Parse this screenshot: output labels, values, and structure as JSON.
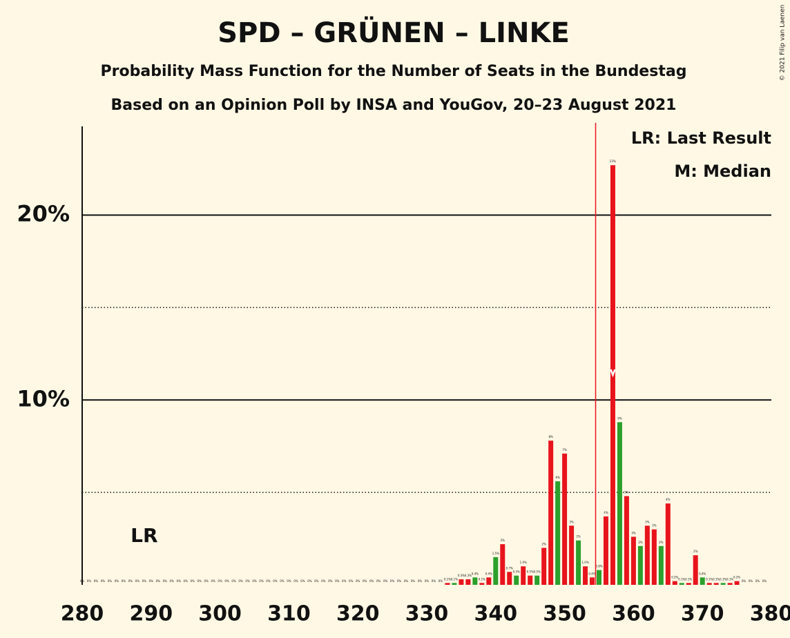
{
  "chart_data": {
    "type": "bar",
    "title": "SPD – GRÜNEN – LINKE",
    "subtitle": "Probability Mass Function for the Number of Seats in the Bundestag",
    "subtitle2": "Based on an Opinion Poll by INSA and YouGov, 20–23 August 2021",
    "copyright": "© 2021 Filip van Laenen",
    "legend": [
      "LR: Last Result",
      "M: Median"
    ],
    "annotation": {
      "label": "LR",
      "x": 289
    },
    "median": 357,
    "majority": 355,
    "x": [
      280,
      281,
      282,
      283,
      284,
      285,
      286,
      287,
      288,
      289,
      290,
      291,
      292,
      293,
      294,
      295,
      296,
      297,
      298,
      299,
      300,
      301,
      302,
      303,
      304,
      305,
      306,
      307,
      308,
      309,
      310,
      311,
      312,
      313,
      314,
      315,
      316,
      317,
      318,
      319,
      320,
      321,
      322,
      323,
      324,
      325,
      326,
      327,
      328,
      329,
      330,
      331,
      332,
      333,
      334,
      335,
      336,
      337,
      338,
      339,
      340,
      341,
      342,
      343,
      344,
      345,
      346,
      347,
      348,
      349,
      350,
      351,
      352,
      353,
      354,
      355,
      356,
      357,
      358,
      359,
      360,
      361,
      362,
      363,
      364,
      365,
      366,
      367,
      368,
      369,
      370,
      371,
      372,
      373,
      374,
      375,
      376,
      377,
      378,
      379
    ],
    "values": [
      0,
      0,
      0,
      0,
      0,
      0,
      0,
      0,
      0,
      0,
      0,
      0,
      0,
      0,
      0,
      0,
      0,
      0,
      0,
      0,
      0,
      0,
      0,
      0,
      0,
      0,
      0,
      0,
      0,
      0,
      0,
      0,
      0,
      0,
      0,
      0,
      0,
      0,
      0,
      0,
      0,
      0,
      0,
      0,
      0,
      0,
      0,
      0,
      0,
      0,
      0,
      0,
      0,
      0.1,
      0.1,
      0.3,
      0.3,
      0.4,
      0.1,
      0.4,
      1.5,
      2.2,
      0.7,
      0.5,
      1.0,
      0.5,
      0.5,
      2.0,
      7.8,
      5.6,
      7.1,
      3.2,
      2.4,
      1.0,
      0.4,
      0.8,
      3.7,
      22.7,
      8.8,
      4.8,
      2.6,
      2.1,
      3.2,
      3.0,
      2.1,
      4.4,
      0.2,
      0.1,
      0.1,
      1.6,
      0.4,
      0.1,
      0.1,
      0.1,
      0.1,
      0.2,
      0,
      0,
      0,
      0
    ],
    "value_labels": [
      "0%",
      "0%",
      "0%",
      "0%",
      "0%",
      "0%",
      "0%",
      "0%",
      "0%",
      "0%",
      "0%",
      "0%",
      "0%",
      "0%",
      "0%",
      "0%",
      "0%",
      "0%",
      "0%",
      "0%",
      "0%",
      "0%",
      "0%",
      "0%",
      "0%",
      "0%",
      "0%",
      "0%",
      "0%",
      "0%",
      "0%",
      "0%",
      "0%",
      "0%",
      "0%",
      "0%",
      "0%",
      "0%",
      "0%",
      "0%",
      "0%",
      "0%",
      "0%",
      "0%",
      "0%",
      "0%",
      "0%",
      "0%",
      "0%",
      "0%",
      "0%",
      "0%",
      "0%",
      "0.1%",
      "0.1%",
      "0.3%",
      "0.3%",
      "0.4%",
      "0.1%",
      "0.4%",
      "1.5%",
      "2%",
      "0.7%",
      "0.5%",
      "1.0%",
      "0.5%",
      "0.5%",
      "2%",
      "8%",
      "6%",
      "7%",
      "3%",
      "2%",
      "1.0%",
      "0.4%",
      "0.8%",
      "4%",
      "23%",
      "9%",
      "5%",
      "3%",
      "2%",
      "3%",
      "3%",
      "2%",
      "4%",
      "0.2%",
      "0.1%",
      "0.1%",
      "2%",
      "0.4%",
      "0.1%",
      "0.1%",
      "0.1%",
      "0.1%",
      "0.2%",
      "0%",
      "0%",
      "0%",
      "0%"
    ],
    "colors": [
      "#2ca02c",
      "#e8141c",
      "#e8141c",
      "#2ca02c",
      "#e8141c",
      "#e8141c",
      "#2ca02c",
      "#e8141c",
      "#e8141c",
      "#2ca02c",
      "#e8141c",
      "#e8141c",
      "#2ca02c",
      "#e8141c",
      "#e8141c",
      "#2ca02c",
      "#e8141c",
      "#e8141c",
      "#2ca02c",
      "#e8141c",
      "#e8141c",
      "#2ca02c",
      "#e8141c",
      "#e8141c",
      "#2ca02c",
      "#e8141c",
      "#e8141c",
      "#2ca02c",
      "#e8141c",
      "#e8141c",
      "#2ca02c",
      "#e8141c",
      "#e8141c",
      "#2ca02c",
      "#e8141c",
      "#e8141c",
      "#2ca02c",
      "#e8141c",
      "#e8141c",
      "#2ca02c",
      "#e8141c",
      "#e8141c",
      "#2ca02c",
      "#e8141c",
      "#e8141c",
      "#2ca02c",
      "#e8141c",
      "#e8141c",
      "#2ca02c",
      "#e8141c",
      "#e8141c",
      "#2ca02c",
      "#e8141c",
      "#e8141c",
      "#2ca02c",
      "#e8141c",
      "#e8141c",
      "#2ca02c",
      "#e8141c",
      "#e8141c",
      "#2ca02c",
      "#e8141c",
      "#e8141c",
      "#2ca02c",
      "#e8141c",
      "#e8141c",
      "#2ca02c",
      "#e8141c",
      "#e8141c",
      "#2ca02c",
      "#e8141c",
      "#e8141c",
      "#2ca02c",
      "#e8141c",
      "#e8141c",
      "#2ca02c",
      "#e8141c",
      "#e8141c",
      "#2ca02c",
      "#e8141c",
      "#e8141c",
      "#2ca02c",
      "#e8141c",
      "#e8141c",
      "#2ca02c",
      "#e8141c",
      "#e8141c",
      "#2ca02c",
      "#e8141c",
      "#e8141c",
      "#2ca02c",
      "#e8141c",
      "#e8141c",
      "#2ca02c",
      "#e8141c",
      "#e8141c",
      "#2ca02c",
      "#e8141c",
      "#e8141c",
      "#2ca02c"
    ],
    "xlim": [
      280,
      380
    ],
    "xticks": [
      280,
      290,
      300,
      310,
      320,
      330,
      340,
      350,
      360,
      370,
      380
    ],
    "ylim": [
      0,
      24.8
    ],
    "yticks": [
      {
        "value": 10,
        "label": "10%"
      },
      {
        "value": 20,
        "label": "20%"
      }
    ],
    "minor_yticks": [
      5,
      15
    ]
  }
}
